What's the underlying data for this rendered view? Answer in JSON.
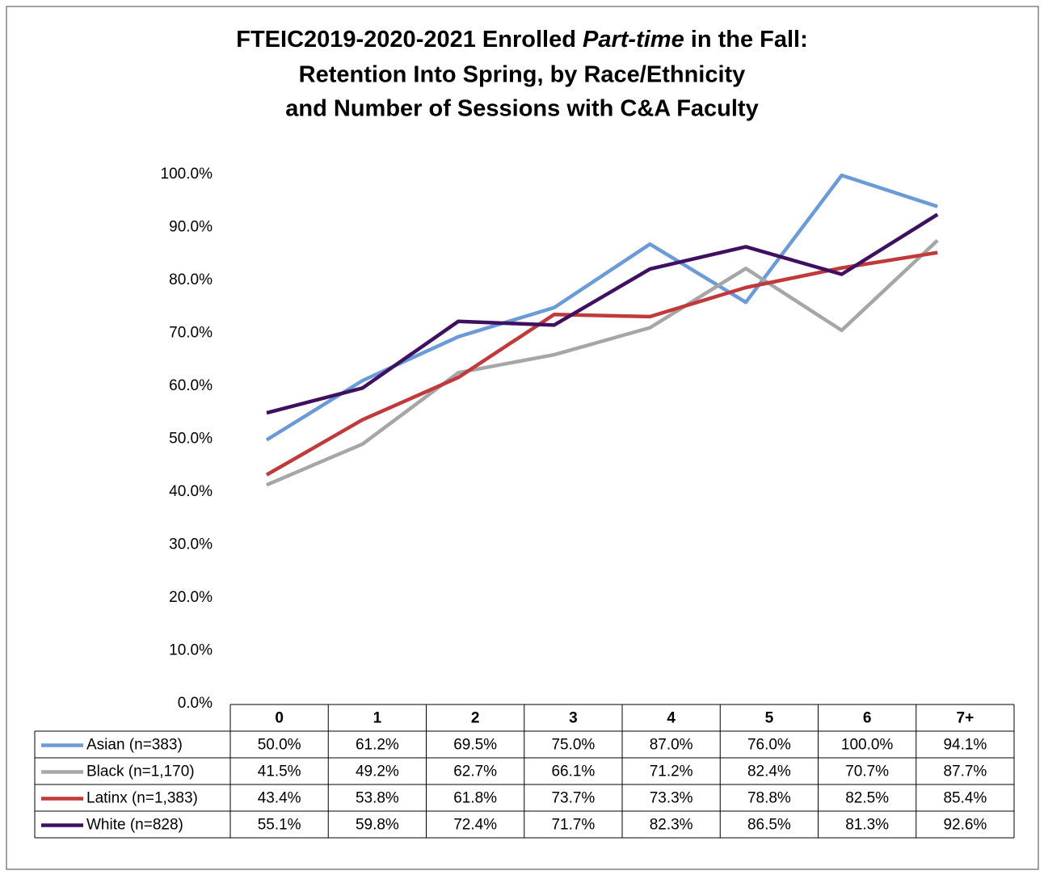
{
  "chart_data": {
    "type": "line",
    "title": [
      "FTEIC2019-2020-2021 Enrolled",
      "Part-time",
      "in the Fall:",
      "Retention Into Spring, by Race/Ethnicity",
      "and Number of Sessions with C&A Faculty"
    ],
    "categories": [
      "0",
      "1",
      "2",
      "3",
      "4",
      "5",
      "6",
      "7+"
    ],
    "ylim": [
      0,
      100
    ],
    "yticks": [
      {
        "value": 0,
        "label": "0.0%"
      },
      {
        "value": 10,
        "label": "10.0%"
      },
      {
        "value": 20,
        "label": "20.0%"
      },
      {
        "value": 30,
        "label": "30.0%"
      },
      {
        "value": 40,
        "label": "40.0%"
      },
      {
        "value": 50,
        "label": "50.0%"
      },
      {
        "value": 60,
        "label": "60.0%"
      },
      {
        "value": 70,
        "label": "70.0%"
      },
      {
        "value": 80,
        "label": "80.0%"
      },
      {
        "value": 90,
        "label": "90.0%"
      },
      {
        "value": 100,
        "label": "100.0%"
      }
    ],
    "grid": false,
    "series": [
      {
        "name": "Asian (n=383)",
        "color": "#6a9bd8",
        "values": [
          50.0,
          61.2,
          69.5,
          75.0,
          87.0,
          76.0,
          100.0,
          94.1
        ],
        "value_labels": [
          "50.0%",
          "61.2%",
          "69.5%",
          "75.0%",
          "87.0%",
          "76.0%",
          "100.0%",
          "94.1%"
        ]
      },
      {
        "name": "Black (n=1,170)",
        "color": "#a6a6a6",
        "values": [
          41.5,
          49.2,
          62.7,
          66.1,
          71.2,
          82.4,
          70.7,
          87.7
        ],
        "value_labels": [
          "41.5%",
          "49.2%",
          "62.7%",
          "66.1%",
          "71.2%",
          "82.4%",
          "70.7%",
          "87.7%"
        ]
      },
      {
        "name": "Latinx (n=1,383)",
        "color": "#c0393b",
        "values": [
          43.4,
          53.8,
          61.8,
          73.7,
          73.3,
          78.8,
          82.5,
          85.4
        ],
        "value_labels": [
          "43.4%",
          "53.8%",
          "61.8%",
          "73.7%",
          "73.3%",
          "78.8%",
          "82.5%",
          "85.4%"
        ]
      },
      {
        "name": "White (n=828)",
        "color": "#3f1060",
        "values": [
          55.1,
          59.8,
          72.4,
          71.7,
          82.3,
          86.5,
          81.3,
          92.6
        ],
        "value_labels": [
          "55.1%",
          "59.8%",
          "72.4%",
          "71.7%",
          "82.3%",
          "86.5%",
          "81.3%",
          "92.6%"
        ]
      }
    ]
  }
}
